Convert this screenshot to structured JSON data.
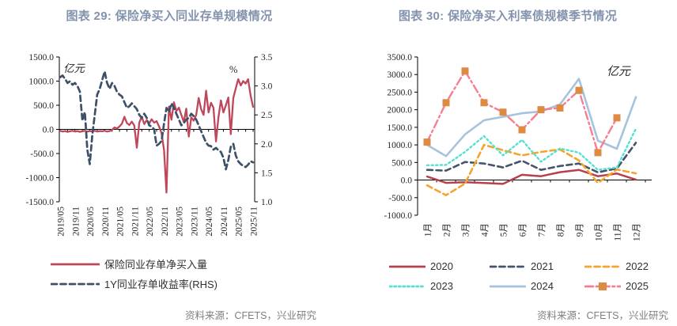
{
  "page": {
    "title_color": "#8493ad",
    "source_color": "#7f7f7f",
    "axis_color": "#000000"
  },
  "figures": [
    {
      "title": "图表 29: 保险净买入同业存单规模情况",
      "source": "资料来源：CFETS，兴业研究",
      "chart_data": {
        "type": "line",
        "unit_left": "亿元",
        "unit_right": "%",
        "x_range": [
          "2019/05",
          "2025/11"
        ],
        "frequency": "monthly",
        "x_tick_labels": [
          "2019/05",
          "2019/11",
          "2020/05",
          "2020/11",
          "2021/05",
          "2021/11",
          "2022/05",
          "2022/11",
          "2023/05",
          "2023/11",
          "2024/05",
          "2024/11",
          "2025/05",
          "2025/11"
        ],
        "y_left": {
          "min": -1500,
          "max": 1500,
          "step": 500,
          "labels": [
            "1500.0",
            "1000.0",
            "500.0",
            "0.0",
            "-500.0",
            "-1000.0",
            "-1500.0"
          ]
        },
        "y_right": {
          "min": 1.0,
          "max": 3.5,
          "step": 0.5,
          "labels": [
            "3.5",
            "3.0",
            "2.5",
            "2.0",
            "1.5",
            "1.0"
          ]
        },
        "series": [
          {
            "name": "保险同业存单净买入量",
            "axis": "left",
            "color": "#c0465a",
            "style": "solid",
            "width": 2.3,
            "values": [
              -30,
              -45,
              -35,
              -50,
              -40,
              -30,
              -45,
              -35,
              -50,
              -40,
              -30,
              -45,
              -35,
              -40,
              -30,
              -45,
              -35,
              -40,
              -30,
              -45,
              -35,
              -10,
              40,
              20,
              60,
              120,
              260,
              130,
              90,
              160,
              80,
              -380,
              140,
              260,
              110,
              190,
              120,
              210,
              140,
              170,
              60,
              -80,
              -430,
              -1310,
              470,
              200,
              560,
              380,
              450,
              300,
              150,
              430,
              -150,
              250,
              180,
              300,
              650,
              420,
              300,
              800,
              350,
              550,
              450,
              -250,
              250,
              600,
              350,
              500,
              660,
              -100,
              650,
              850,
              1040,
              910,
              1000,
              950,
              1040,
              700,
              465
            ]
          },
          {
            "name": "1Y同业存单收益率(RHS)",
            "axis": "right",
            "color": "#3e5068",
            "style": "dashed",
            "width": 2.7,
            "values": [
              3.15,
              3.18,
              3.12,
              3.05,
              3.08,
              3.02,
              3.05,
              3.0,
              2.9,
              2.4,
              2.55,
              1.9,
              1.65,
              2.15,
              2.5,
              2.85,
              2.95,
              3.1,
              3.25,
              3.05,
              2.95,
              3.05,
              3.0,
              2.9,
              2.85,
              2.82,
              2.72,
              2.62,
              2.65,
              2.7,
              2.65,
              2.6,
              2.5,
              2.45,
              2.52,
              2.45,
              2.32,
              2.3,
              2.25,
              1.97,
              2.0,
              2.05,
              2.35,
              2.62,
              2.55,
              2.7,
              2.62,
              2.52,
              2.42,
              2.32,
              2.36,
              2.42,
              2.45,
              2.52,
              2.48,
              2.42,
              2.32,
              2.22,
              2.12,
              2.02,
              1.97,
              1.96,
              1.9,
              1.93,
              1.89,
              1.86,
              1.76,
              1.56,
              1.72,
              1.95,
              2.0,
              1.8,
              1.7,
              1.65,
              1.62,
              1.6,
              1.64,
              1.7,
              1.68
            ]
          }
        ]
      }
    },
    {
      "title": "图表 30: 保险净买入利率债规模季节情况",
      "source": "资料来源：CFETS，兴业研究",
      "chart_data": {
        "type": "line",
        "unit": "亿元",
        "categories": [
          "1月",
          "2月",
          "3月",
          "4月",
          "5月",
          "6月",
          "7月",
          "8月",
          "9月",
          "10月",
          "11月",
          "12月"
        ],
        "ylim": [
          -1000,
          3500
        ],
        "y_step": 500,
        "y_tick_labels": [
          "3500.0",
          "3000.0",
          "2500.0",
          "2000.0",
          "1500.0",
          "1000.0",
          "500.0",
          "0.0",
          "-500.0",
          "-1000.0"
        ],
        "series": [
          {
            "name": "2020",
            "color": "#b5404e",
            "style": "solid",
            "width": 2.5,
            "values": [
              100,
              -80,
              -60,
              -85,
              -110,
              150,
              110,
              225,
              290,
              110,
              185,
              10
            ]
          },
          {
            "name": "2021",
            "color": "#44546a",
            "style": "dashed",
            "width": 2.6,
            "values": [
              290,
              270,
              515,
              470,
              360,
              550,
              290,
              400,
              470,
              220,
              330,
              1060
            ]
          },
          {
            "name": "2022",
            "color": "#f5a42c",
            "style": "dashed",
            "width": 2.6,
            "values": [
              -150,
              -430,
              -100,
              1000,
              850,
              700,
              800,
              870,
              560,
              -80,
              300,
              190
            ]
          },
          {
            "name": "2023",
            "color": "#55e0d2",
            "style": "dotted",
            "width": 2.4,
            "values": [
              420,
              430,
              800,
              1250,
              700,
              1140,
              520,
              900,
              780,
              290,
              360,
              1460
            ]
          },
          {
            "name": "2024",
            "color": "#a6c3de",
            "style": "solid",
            "width": 2.6,
            "values": [
              1000,
              680,
              1300,
              1700,
              1800,
              1900,
              1950,
              2150,
              2880,
              1120,
              890,
              2360
            ]
          },
          {
            "name": "2025",
            "color": "#f97d92",
            "style": "dashdot",
            "width": 2.4,
            "marker": "square",
            "marker_color": "#dd8b42",
            "values": [
              1080,
              2200,
              3100,
              2200,
              1930,
              1430,
              2000,
              2050,
              2550,
              780,
              1770,
              null
            ]
          }
        ]
      }
    }
  ]
}
